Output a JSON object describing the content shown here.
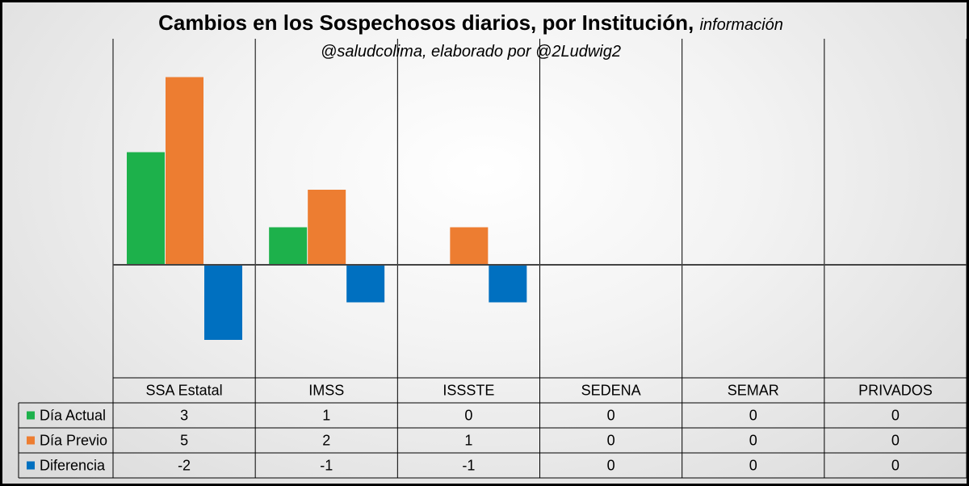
{
  "title": {
    "main": "Cambios en los Sospechosos diarios, por Institución,",
    "note": "información",
    "subtitle": "@saludcolima, elaborado por @2Ludwig2"
  },
  "colors": {
    "actual": "#1DB14B",
    "previo": "#ED7D31",
    "diferencia": "#0070C0"
  },
  "chart_data": {
    "type": "bar",
    "title": "Cambios en los Sospechosos diarios, por Institución, información",
    "subtitle": "@saludcolima, elaborado por @2Ludwig2",
    "categories": [
      "SSA Estatal",
      "IMSS",
      "ISSSTE",
      "SEDENA",
      "SEMAR",
      "PRIVADOS"
    ],
    "series": [
      {
        "name": "Día Actual",
        "color": "#1DB14B",
        "values": [
          3,
          1,
          0,
          0,
          0,
          0
        ]
      },
      {
        "name": "Día Previo",
        "color": "#ED7D31",
        "values": [
          5,
          2,
          1,
          0,
          0,
          0
        ]
      },
      {
        "name": "Diferencia",
        "color": "#0070C0",
        "values": [
          -2,
          -1,
          -1,
          0,
          0,
          0
        ]
      }
    ],
    "ylim": [
      -3,
      5.5
    ],
    "grid": false,
    "legend": "data-table",
    "data_table": true
  }
}
